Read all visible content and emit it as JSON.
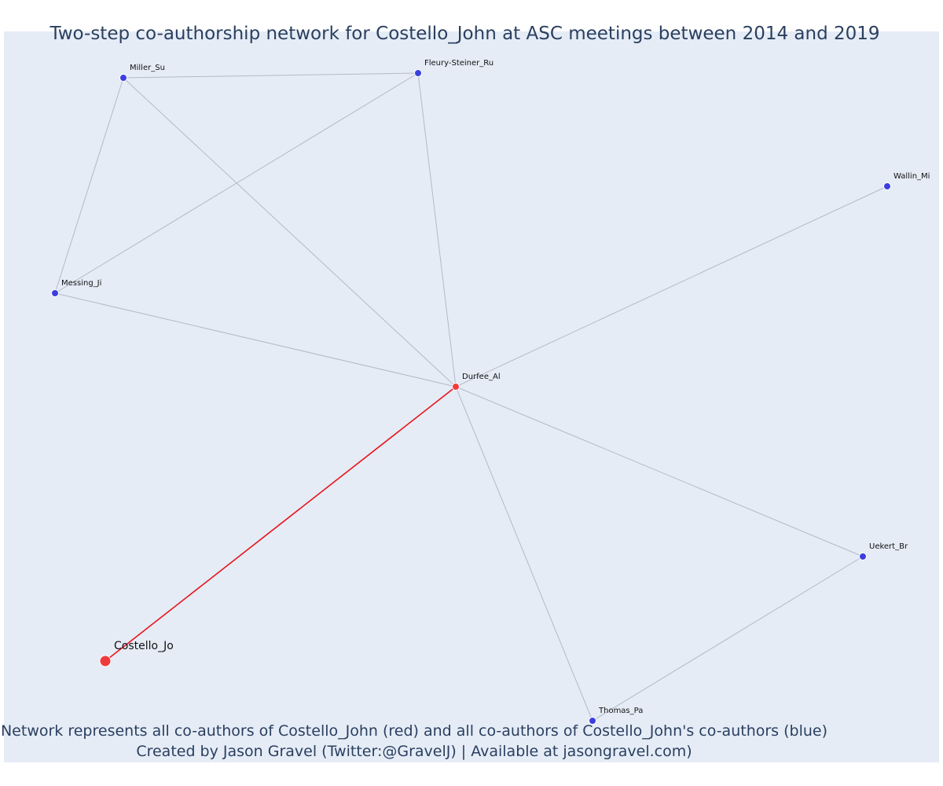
{
  "title": "Two-step co-authorship network for Costello_John at ASC meetings between 2014 and 2019",
  "caption_line1": "Network represents all co-authors of Costello_John (red) and all co-authors of Costello_John's co-authors (blue)",
  "caption_line2": "Created by Jason Gravel (Twitter:@GravelJ) | Available at jasongravel.com)",
  "colors": {
    "background": "#e5ecf6",
    "focal": "#ef3b3b",
    "coauthor": "#ef3b3b",
    "second_degree": "#3b3fe0",
    "edge": "#b4b9c8",
    "focal_edge": "#e8161c",
    "text": "#2a3f5f"
  },
  "nodes": [
    {
      "id": "Costello_Jo",
      "label": "Costello_Jo",
      "role": "focal"
    },
    {
      "id": "Durfee_Al",
      "label": "Durfee_Al",
      "role": "coauthor"
    },
    {
      "id": "Miller_Su",
      "label": "Miller_Su",
      "role": "second_degree"
    },
    {
      "id": "Fleury-Steiner_Ru",
      "label": "Fleury-Steiner_Ru",
      "role": "second_degree"
    },
    {
      "id": "Wallin_Mi",
      "label": "Wallin_Mi",
      "role": "second_degree"
    },
    {
      "id": "Messing_Ji",
      "label": "Messing_Ji",
      "role": "second_degree"
    },
    {
      "id": "Uekert_Br",
      "label": "Uekert_Br",
      "role": "second_degree"
    },
    {
      "id": "Thomas_Pa",
      "label": "Thomas_Pa",
      "role": "second_degree"
    }
  ],
  "edges": [
    {
      "source": "Costello_Jo",
      "target": "Durfee_Al",
      "type": "focal"
    },
    {
      "source": "Durfee_Al",
      "target": "Miller_Su",
      "type": "other"
    },
    {
      "source": "Durfee_Al",
      "target": "Fleury-Steiner_Ru",
      "type": "other"
    },
    {
      "source": "Durfee_Al",
      "target": "Wallin_Mi",
      "type": "other"
    },
    {
      "source": "Durfee_Al",
      "target": "Messing_Ji",
      "type": "other"
    },
    {
      "source": "Durfee_Al",
      "target": "Uekert_Br",
      "type": "other"
    },
    {
      "source": "Durfee_Al",
      "target": "Thomas_Pa",
      "type": "other"
    },
    {
      "source": "Miller_Su",
      "target": "Fleury-Steiner_Ru",
      "type": "other"
    },
    {
      "source": "Miller_Su",
      "target": "Messing_Ji",
      "type": "other"
    },
    {
      "source": "Fleury-Steiner_Ru",
      "target": "Messing_Ji",
      "type": "other"
    },
    {
      "source": "Uekert_Br",
      "target": "Thomas_Pa",
      "type": "other"
    }
  ]
}
